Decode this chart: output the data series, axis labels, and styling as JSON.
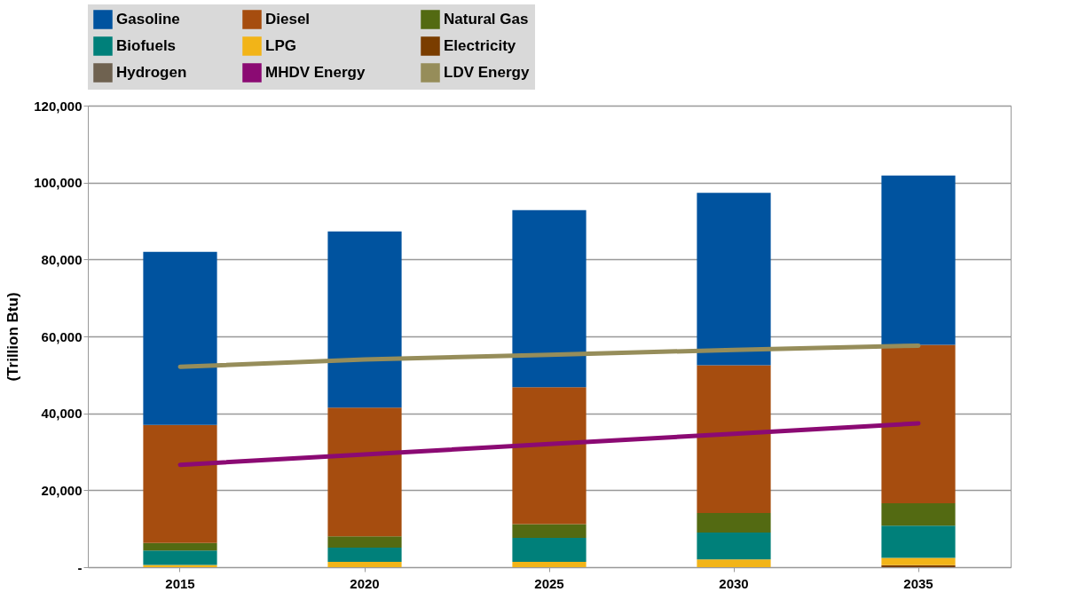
{
  "chart_data": {
    "type": "bar",
    "stacked": true,
    "ylabel": "(Trillion Btu)",
    "categories": [
      "2015",
      "2020",
      "2025",
      "2030",
      "2035"
    ],
    "series": [
      {
        "name": "Electricity",
        "color": "#7a3d00",
        "values": [
          0,
          0,
          0,
          0,
          500
        ]
      },
      {
        "name": "LPG",
        "color": "#f2b418",
        "values": [
          600,
          1400,
          1400,
          2000,
          1900
        ]
      },
      {
        "name": "Biofuels",
        "color": "#00807a",
        "values": [
          3700,
          3700,
          6200,
          7000,
          8400
        ]
      },
      {
        "name": "Natural Gas",
        "color": "#536a12",
        "values": [
          2000,
          2900,
          3600,
          5100,
          5800
        ]
      },
      {
        "name": "Diesel",
        "color": "#a64d0f",
        "values": [
          30700,
          33500,
          35600,
          38400,
          41200
        ]
      },
      {
        "name": "Gasoline",
        "color": "#00539f",
        "values": [
          45000,
          45800,
          46000,
          44800,
          44000
        ]
      },
      {
        "name": "Hydrogen",
        "color": "#6f6250",
        "values": [
          0,
          0,
          0,
          0,
          0
        ]
      },
      {
        "name": "MHDV Energy",
        "type": "line",
        "color": "#8b0a73",
        "values": [
          26600,
          29300,
          32000,
          34700,
          37400
        ]
      },
      {
        "name": "LDV Energy",
        "type": "line",
        "color": "#968d5a",
        "values": [
          52100,
          54000,
          55200,
          56500,
          57600
        ]
      }
    ],
    "ylim": [
      0,
      120000
    ],
    "yticks": [
      {
        "value": 0,
        "label": "-"
      },
      {
        "value": 20000,
        "label": "20,000"
      },
      {
        "value": 40000,
        "label": "40,000"
      },
      {
        "value": 60000,
        "label": "60,000"
      },
      {
        "value": 80000,
        "label": "80,000"
      },
      {
        "value": 100000,
        "label": "100,000"
      },
      {
        "value": 120000,
        "label": "120,000"
      }
    ],
    "grid": "y",
    "legend": "top"
  }
}
